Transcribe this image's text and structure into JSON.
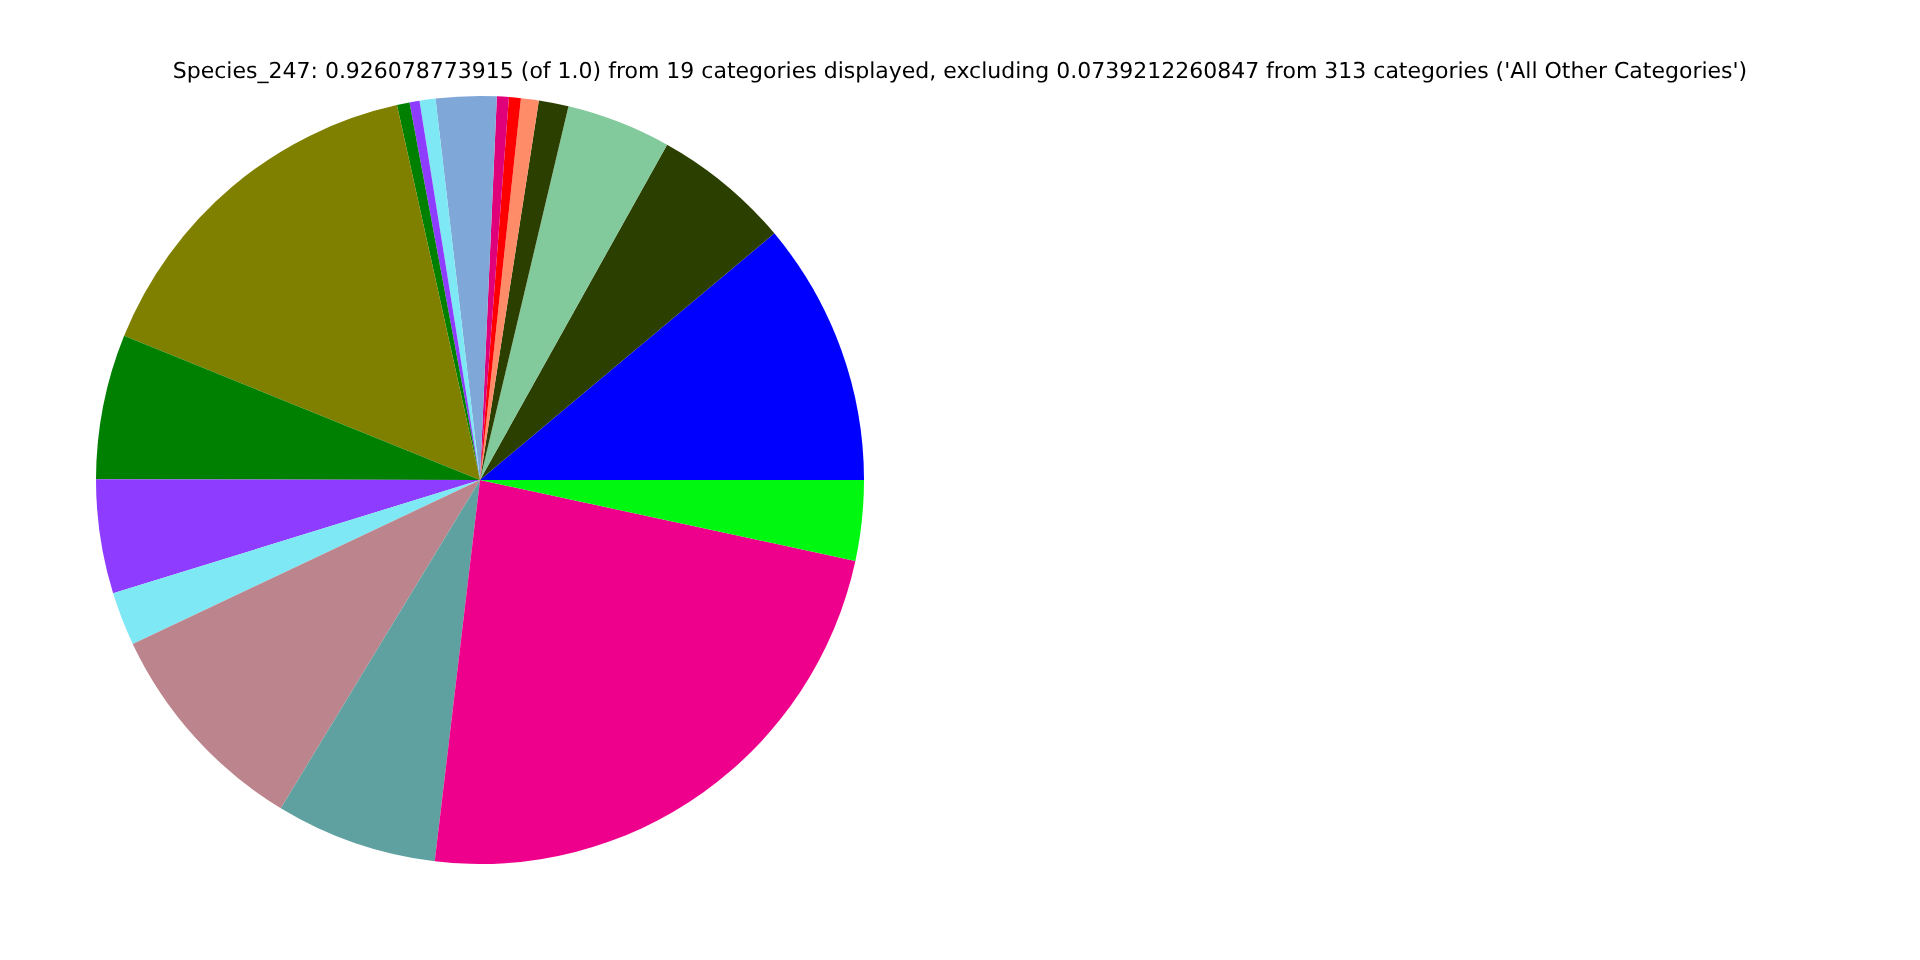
{
  "chart_data": {
    "type": "pie",
    "title": "Species_247: 0.926078773915 (of 1.0) from 19 categories displayed, excluding 0.0739212260847 from 313 categories ('All Other Categories')",
    "categories": [
      null,
      null,
      null,
      null,
      null,
      null,
      null,
      null,
      null,
      null,
      null,
      null,
      null,
      null,
      null,
      null,
      null,
      null,
      null
    ],
    "values": [
      11.1,
      5.8,
      4.4,
      1.25,
      0.75,
      0.5,
      0.5,
      2.55,
      0.67,
      0.42,
      0.53,
      15.4,
      6.1,
      4.8,
      2.25,
      9.3,
      6.8,
      23.5,
      3.38
    ],
    "colors": [
      "#0000ff",
      "#2b3f00",
      "#82c99b",
      "#2b3f00",
      "#ff8c69",
      "#ff0000",
      "#e0007a",
      "#7fa8d8",
      "#7ee8f5",
      "#8e3cff",
      "#008000",
      "#808000",
      "#008000",
      "#8e3cff",
      "#7ee8f5",
      "#bc848c",
      "#5fa1a0",
      "#ee008c",
      "#00f810"
    ],
    "legend": false
  }
}
